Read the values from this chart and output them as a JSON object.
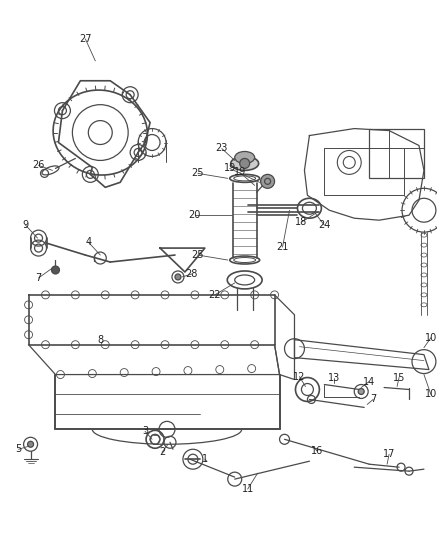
{
  "bg_color": "#ffffff",
  "lc": "#4a4a4a",
  "lc2": "#333333",
  "figsize": [
    4.38,
    5.33
  ],
  "dpi": 100,
  "label_fs": 7.0,
  "label_color": "#222222"
}
